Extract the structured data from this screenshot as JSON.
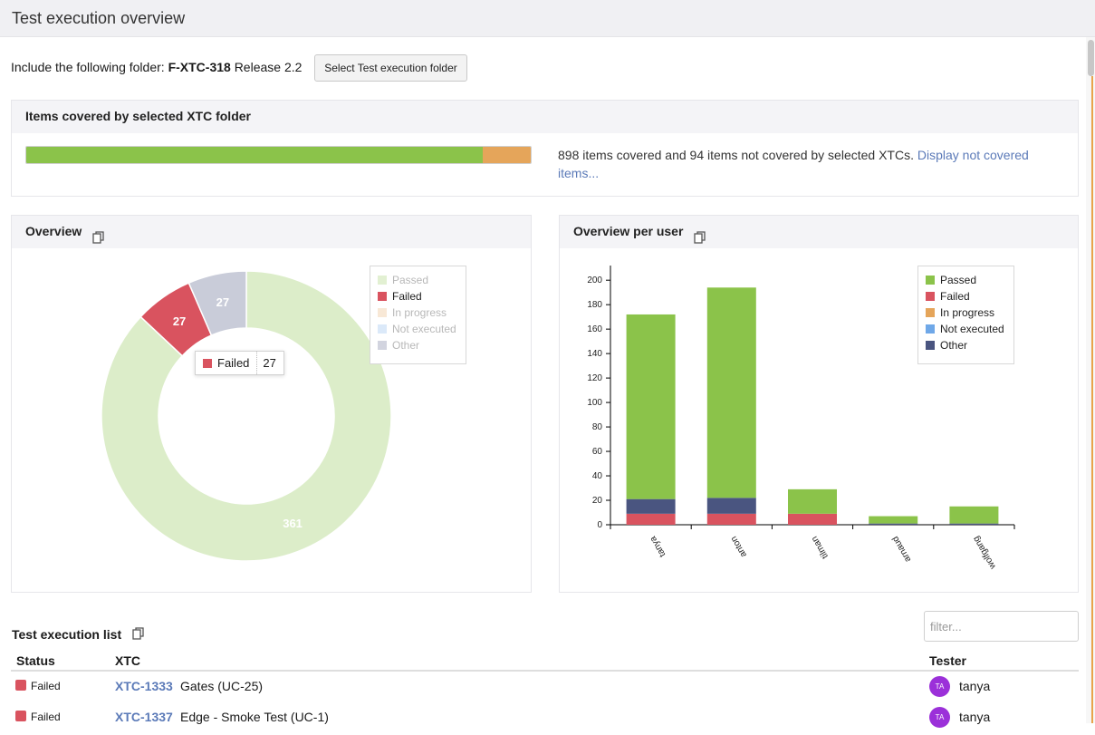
{
  "page": {
    "title": "Test execution overview"
  },
  "folder": {
    "prefix": "Include the following folder:",
    "id": "F-XTC-318",
    "name": "Release 2.2",
    "button_label": "Select Test execution folder"
  },
  "coverage": {
    "heading": "Items covered by selected XTC folder",
    "covered": 898,
    "not_covered": 94,
    "text": "898 items covered and 94 items not covered by selected XTCs.",
    "link": "Display not covered items...",
    "colors": {
      "covered": "#8bc34a",
      "not_covered": "#e5a55a"
    }
  },
  "overview": {
    "heading": "Overview",
    "copy_icon": "copy-icon",
    "legend": [
      {
        "label": "Passed",
        "color": "#8bc34a",
        "active": false
      },
      {
        "label": "Failed",
        "color": "#d9535f",
        "active": true
      },
      {
        "label": "In progress",
        "color": "#e5a55a",
        "active": false
      },
      {
        "label": "Not executed",
        "color": "#6fa8e8",
        "active": false
      },
      {
        "label": "Other",
        "color": "#4a5580",
        "active": false
      }
    ],
    "tooltip": {
      "label": "Failed",
      "value": "27",
      "color": "#d9535f"
    }
  },
  "per_user": {
    "heading": "Overview per user",
    "copy_icon": "copy-icon",
    "legend": [
      {
        "label": "Passed",
        "color": "#8bc34a"
      },
      {
        "label": "Failed",
        "color": "#d9535f"
      },
      {
        "label": "In progress",
        "color": "#e5a55a"
      },
      {
        "label": "Not executed",
        "color": "#6fa8e8"
      },
      {
        "label": "Other",
        "color": "#4a5580"
      }
    ]
  },
  "chart_data": [
    {
      "type": "pie",
      "title": "Overview",
      "donut": true,
      "slices": [
        {
          "label": "Passed",
          "value": 361,
          "color": "#8bc34a",
          "dimmed": true
        },
        {
          "label": "Failed",
          "value": 27,
          "color": "#d9535f",
          "dimmed": false
        },
        {
          "label": "In progress",
          "value": 0,
          "color": "#e5a55a",
          "dimmed": true
        },
        {
          "label": "Not executed",
          "value": 0,
          "color": "#6fa8e8",
          "dimmed": true
        },
        {
          "label": "Other",
          "value": 27,
          "color": "#4a5580",
          "dimmed": true
        }
      ],
      "legend_position": "top-right"
    },
    {
      "type": "bar",
      "stacked": true,
      "title": "Overview per user",
      "categories": [
        "tanya",
        "anton",
        "tilman",
        "arnaud",
        "wolfgang"
      ],
      "series": [
        {
          "name": "Failed",
          "color": "#d9535f",
          "values": [
            9,
            9,
            9,
            0,
            0
          ]
        },
        {
          "name": "Other",
          "color": "#4a5580",
          "values": [
            12,
            13,
            0,
            1,
            1
          ]
        },
        {
          "name": "Not executed",
          "color": "#6fa8e8",
          "values": [
            0,
            0,
            0,
            0,
            0
          ]
        },
        {
          "name": "In progress",
          "color": "#e5a55a",
          "values": [
            0,
            0,
            0,
            0,
            0
          ]
        },
        {
          "name": "Passed",
          "color": "#8bc34a",
          "values": [
            151,
            172,
            20,
            6,
            14
          ]
        }
      ],
      "yticks": [
        0,
        20,
        40,
        60,
        80,
        100,
        120,
        140,
        160,
        180,
        200
      ],
      "ylim": [
        0,
        212
      ],
      "legend_position": "top-right"
    }
  ],
  "list": {
    "heading": "Test execution list",
    "filter_placeholder": "filter...",
    "columns": {
      "status": "Status",
      "xtc": "XTC",
      "tester": "Tester"
    },
    "rows": [
      {
        "status": "Failed",
        "status_color": "#d9535f",
        "xtc_id": "XTC-1333",
        "xtc_name": "Gates (UC-25)",
        "avatar": "TA",
        "tester": "tanya"
      },
      {
        "status": "Failed",
        "status_color": "#d9535f",
        "xtc_id": "XTC-1337",
        "xtc_name": "Edge - Smoke Test (UC-1)",
        "avatar": "TA",
        "tester": "tanya"
      }
    ]
  }
}
